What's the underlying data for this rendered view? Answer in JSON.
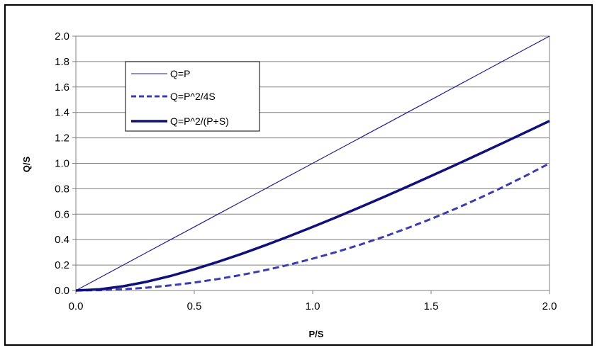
{
  "chart_data": {
    "type": "line",
    "xlabel": "P/S",
    "ylabel": "Q/S",
    "xlim": [
      0,
      2
    ],
    "ylim": [
      0,
      2
    ],
    "x_ticks": [
      "0.0",
      "0.5",
      "1.0",
      "1.5",
      "2.0"
    ],
    "y_ticks": [
      "0.0",
      "0.2",
      "0.4",
      "0.6",
      "0.8",
      "1.0",
      "1.2",
      "1.4",
      "1.6",
      "1.8",
      "2.0"
    ],
    "grid": "horizontal",
    "legend_position": "top-left",
    "x": [
      0,
      0.1,
      0.2,
      0.3,
      0.4,
      0.5,
      0.6,
      0.7,
      0.8,
      0.9,
      1.0,
      1.1,
      1.2,
      1.3,
      1.4,
      1.5,
      1.6,
      1.7,
      1.8,
      1.9,
      2.0
    ],
    "series": [
      {
        "name": "Q=P",
        "style": "thin",
        "color": "#1f1f8f",
        "values": [
          0,
          0.1,
          0.2,
          0.3,
          0.4,
          0.5,
          0.6,
          0.7,
          0.8,
          0.9,
          1.0,
          1.1,
          1.2,
          1.3,
          1.4,
          1.5,
          1.6,
          1.7,
          1.8,
          1.9,
          2.0
        ]
      },
      {
        "name": "Q=P^2/4S",
        "style": "dashed",
        "color": "#3b3bb0",
        "values": [
          0,
          0.0025,
          0.01,
          0.0225,
          0.04,
          0.0625,
          0.09,
          0.1225,
          0.16,
          0.2025,
          0.25,
          0.3025,
          0.36,
          0.4225,
          0.49,
          0.5625,
          0.64,
          0.7225,
          0.81,
          0.9025,
          1.0
        ]
      },
      {
        "name": "Q=P^2/(P+S)",
        "style": "thick",
        "color": "#10107a",
        "values": [
          0,
          0.0091,
          0.0333,
          0.0692,
          0.1143,
          0.1667,
          0.225,
          0.2882,
          0.3556,
          0.4263,
          0.5,
          0.5762,
          0.6545,
          0.7348,
          0.8167,
          0.9,
          0.9846,
          1.0704,
          1.1571,
          1.2448,
          1.3333
        ]
      }
    ]
  }
}
